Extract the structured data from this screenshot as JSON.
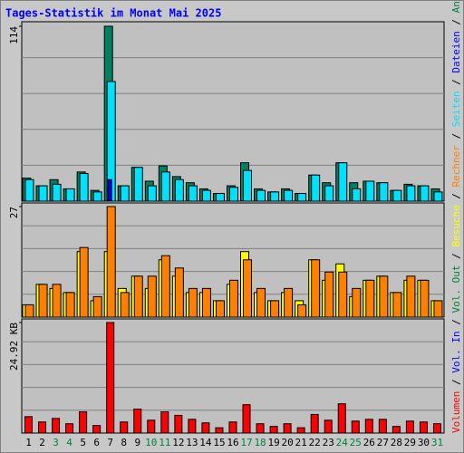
{
  "chart_data": {
    "type": "bar",
    "title": "Tages-Statistik im Monat Mai 2025",
    "categories": [
      "1",
      "2",
      "3",
      "4",
      "5",
      "6",
      "7",
      "8",
      "9",
      "10",
      "11",
      "12",
      "13",
      "14",
      "15",
      "16",
      "17",
      "18",
      "19",
      "20",
      "21",
      "22",
      "23",
      "24",
      "25",
      "26",
      "27",
      "28",
      "29",
      "30",
      "31"
    ],
    "category_colors": [
      "#000",
      "#000",
      "#008040",
      "#008040",
      "#000",
      "#000",
      "#000",
      "#000",
      "#000",
      "#008040",
      "#008040",
      "#000",
      "#000",
      "#000",
      "#000",
      "#000",
      "#008040",
      "#008040",
      "#000",
      "#000",
      "#000",
      "#000",
      "#000",
      "#008040",
      "#008040",
      "#000",
      "#000",
      "#000",
      "#000",
      "#000",
      "#008040"
    ],
    "legend_separator": " / ",
    "legend": [
      {
        "label": "Volumen",
        "color": "#ff0000"
      },
      {
        "label": "Vol. In",
        "color": "#0000ff"
      },
      {
        "label": "Vol. Out",
        "color": "#008040"
      },
      {
        "label": "Besuche",
        "color": "#ffff00"
      },
      {
        "label": "Rechner",
        "color": "#ff8000"
      },
      {
        "label": "Seiten",
        "color": "#00e0ff"
      },
      {
        "label": "Dateien",
        "color": "#0000ff"
      },
      {
        "label": "Anfragen",
        "color": "#008040"
      }
    ],
    "panels": [
      {
        "ylim": [
          0,
          114
        ],
        "yticks": [
          {
            "value": 114,
            "label": "114"
          }
        ],
        "series": [
          {
            "color": "#008060",
            "values": [
              15,
              10,
              14,
              8,
              19,
              7,
              114,
              10,
              22,
              13,
              23,
              16,
              12,
              8,
              5,
              10,
              25,
              8,
              6,
              8,
              5,
              17,
              12,
              25,
              12,
              13,
              12,
              7,
              11,
              10,
              8
            ]
          },
          {
            "color": "#00e0ff",
            "values": [
              14,
              10,
              11,
              8,
              18,
              6,
              78,
              10,
              22,
              10,
              19,
              14,
              10,
              7,
              5,
              9,
              20,
              7,
              6,
              7,
              5,
              17,
              10,
              25,
              8,
              13,
              12,
              7,
              10,
              10,
              6
            ]
          },
          {
            "color": "#0000ff",
            "values": [
              null,
              null,
              null,
              null,
              null,
              null,
              14,
              null,
              null,
              null,
              null,
              null,
              null,
              null,
              null,
              null,
              null,
              null,
              null,
              null,
              null,
              null,
              null,
              null,
              null,
              null,
              null,
              null,
              null,
              null,
              null
            ]
          }
        ]
      },
      {
        "ylim": [
          0,
          27
        ],
        "yticks": [
          {
            "value": 27,
            "label": "27"
          }
        ],
        "series": [
          {
            "color": "#ffff00",
            "values": [
              3,
              8,
              7,
              6,
              16,
              4,
              16,
              7,
              10,
              7,
              14,
              10,
              6,
              6,
              4,
              8,
              16,
              6,
              4,
              6,
              4,
              14,
              9,
              13,
              5,
              9,
              10,
              6,
              9,
              9,
              4
            ]
          },
          {
            "color": "#ff8000",
            "values": [
              3,
              8,
              8,
              6,
              17,
              5,
              27,
              6,
              10,
              10,
              15,
              12,
              7,
              7,
              4,
              9,
              14,
              7,
              4,
              7,
              3,
              14,
              11,
              11,
              7,
              9,
              10,
              6,
              10,
              9,
              4
            ]
          }
        ]
      },
      {
        "ylim": [
          0,
          24.92
        ],
        "yticks": [
          {
            "value": 24.92,
            "label": "24.92 KB"
          }
        ],
        "series": [
          {
            "color": "#ff0000",
            "values": [
              3.7,
              2.5,
              3.3,
              2.1,
              4.8,
              1.7,
              24.92,
              2.5,
              5.4,
              2.9,
              4.8,
              4.0,
              3.1,
              2.3,
              1.2,
              2.5,
              6.4,
              2.1,
              1.5,
              2.1,
              1.2,
              4.2,
              2.9,
              6.6,
              2.7,
              3.1,
              3.1,
              1.5,
              2.7,
              2.5,
              2.1
            ]
          }
        ]
      }
    ]
  }
}
